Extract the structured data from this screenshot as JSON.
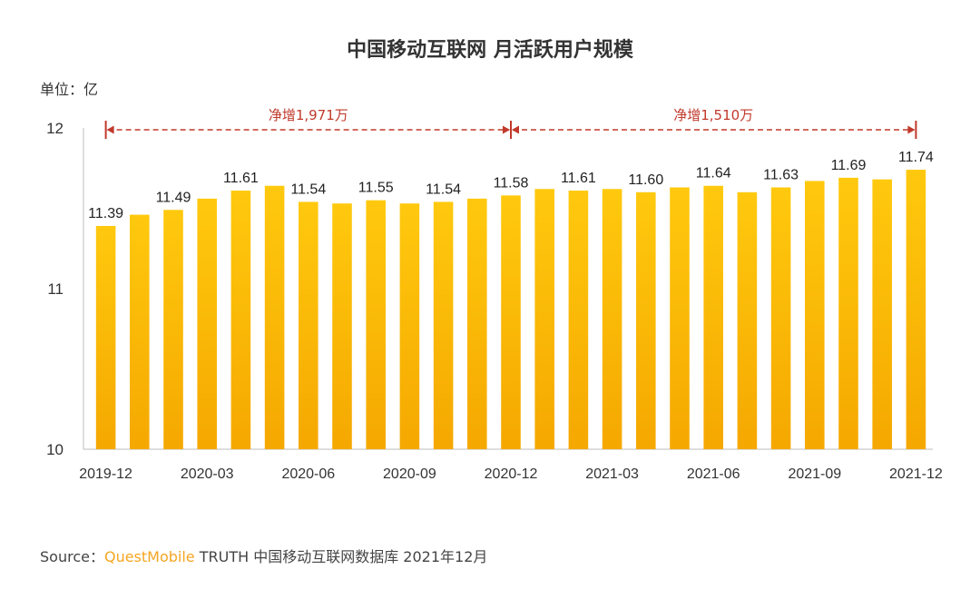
{
  "title": "中国移动互联网 月活跃用户规模",
  "unit_label": "单位：亿",
  "annotations": [
    {
      "label": "净增1,971万",
      "from_index": 0,
      "to_index": 12
    },
    {
      "label": "净增1,510万",
      "from_index": 12,
      "to_index": 24
    }
  ],
  "source": {
    "prefix": "Source：",
    "brand": "QuestMobile",
    "rest": " TRUTH 中国移动互联网数据库 2021年12月"
  },
  "colors": {
    "bar_top": "#FFC90E",
    "bar_bottom": "#F5A800",
    "annotation": "#C0392B",
    "brand": "#F5A623"
  },
  "chart_data": {
    "type": "bar",
    "title": "中国移动互联网 月活跃用户规模",
    "ylabel": "单位：亿",
    "ylim": [
      10,
      12
    ],
    "yticks": [
      "10",
      "11",
      "12"
    ],
    "categories": [
      "2019-12",
      "2020-01",
      "2020-02",
      "2020-03",
      "2020-04",
      "2020-05",
      "2020-06",
      "2020-07",
      "2020-08",
      "2020-09",
      "2020-10",
      "2020-11",
      "2020-12",
      "2021-01",
      "2021-02",
      "2021-03",
      "2021-04",
      "2021-05",
      "2021-06",
      "2021-07",
      "2021-08",
      "2021-09",
      "2021-10",
      "2021-11",
      "2021-12"
    ],
    "shown_tick_labels": [
      "2019-12",
      "2020-03",
      "2020-06",
      "2020-09",
      "2020-12",
      "2021-03",
      "2021-06",
      "2021-09",
      "2021-12"
    ],
    "values": [
      11.39,
      11.46,
      11.49,
      11.56,
      11.61,
      11.64,
      11.54,
      11.53,
      11.55,
      11.53,
      11.54,
      11.56,
      11.58,
      11.62,
      11.61,
      11.62,
      11.6,
      11.63,
      11.64,
      11.6,
      11.63,
      11.67,
      11.69,
      11.68,
      11.74
    ],
    "data_labels": [
      {
        "index": 0,
        "text": "11.39"
      },
      {
        "index": 2,
        "text": "11.49"
      },
      {
        "index": 4,
        "text": "11.61"
      },
      {
        "index": 6,
        "text": "11.54"
      },
      {
        "index": 8,
        "text": "11.55"
      },
      {
        "index": 10,
        "text": "11.54"
      },
      {
        "index": 12,
        "text": "11.58"
      },
      {
        "index": 14,
        "text": "11.61"
      },
      {
        "index": 16,
        "text": "11.60"
      },
      {
        "index": 18,
        "text": "11.64"
      },
      {
        "index": 20,
        "text": "11.63"
      },
      {
        "index": 22,
        "text": "11.69"
      },
      {
        "index": 24,
        "text": "11.74"
      }
    ],
    "grid": false,
    "legend": "none"
  }
}
